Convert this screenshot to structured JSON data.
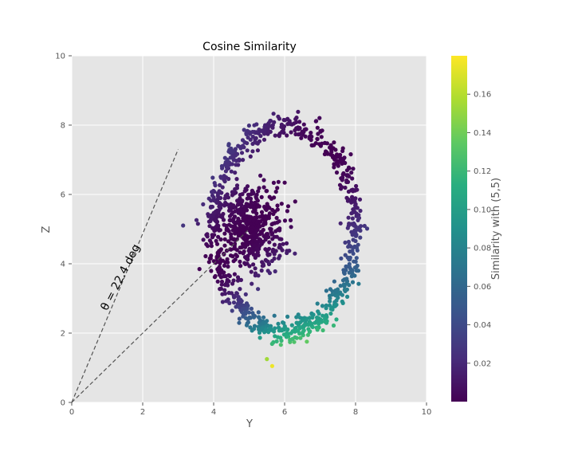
{
  "chart_data": {
    "type": "scatter",
    "title": "Cosine Similarity",
    "xlabel": "Y",
    "ylabel": "Z",
    "xlim": [
      0,
      10
    ],
    "ylim": [
      0,
      10
    ],
    "xticks": [
      "0",
      "2",
      "4",
      "6",
      "8",
      "10"
    ],
    "yticks": [
      "0",
      "2",
      "4",
      "6",
      "8",
      "10"
    ],
    "grid": true,
    "colormap": "viridis",
    "colorbar": {
      "label": "Similarity with (5,5)",
      "range": [
        0.0,
        0.18
      ],
      "ticks": [
        "0.02",
        "0.04",
        "0.06",
        "0.08",
        "0.10",
        "0.12",
        "0.14",
        "0.16"
      ]
    },
    "series": [
      {
        "points": [
          {
            "name": "outer-ring",
            "center": [
              6.0,
              5.0
            ],
            "radius": 2.0,
            "spread": 0.12
          },
          {
            "name": "inner-cluster",
            "center": [
              5.0,
              5.0
            ],
            "spread": 0.55
          }
        ]
      }
    ],
    "annotation": {
      "text": "θ = 22.4 deg",
      "reference_point": [
        5,
        5
      ],
      "lines": [
        {
          "from": [
            0,
            0
          ],
          "to": [
            3.0,
            7.3
          ]
        },
        {
          "from": [
            0,
            0
          ],
          "to": [
            5.0,
            5.0
          ]
        }
      ]
    },
    "outliers": [
      [
        5.5,
        1.25
      ],
      [
        5.65,
        1.05
      ]
    ]
  },
  "background": "#e5e5e5",
  "gridColor": "#ffffff"
}
